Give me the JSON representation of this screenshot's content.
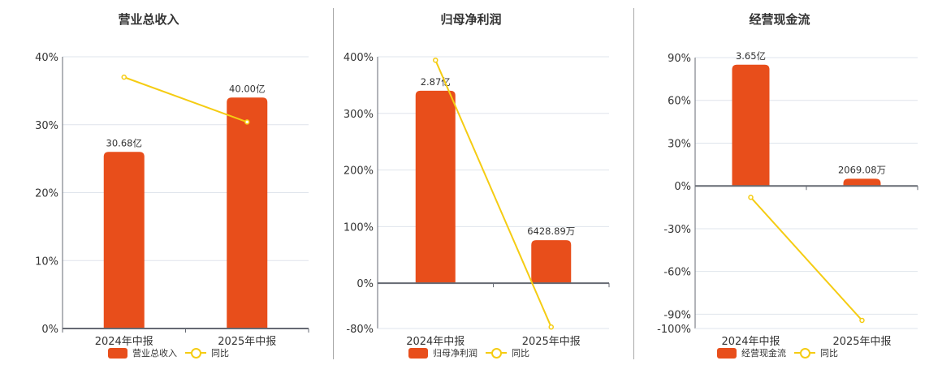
{
  "colors": {
    "bar": "#e84e1b",
    "line": "#f5cc13",
    "grid": "#dfe4ec",
    "axis": "#666a73",
    "divider": "#a8a8a8"
  },
  "legend": {
    "line_label": "同比"
  },
  "categories": [
    "2024年中报",
    "2025年中报"
  ],
  "chart_data": [
    {
      "type": "bar+line",
      "title": "营业总收入",
      "categories": [
        "2024年中报",
        "2025年中报"
      ],
      "series": [
        {
          "name": "营业总收入",
          "type": "bar",
          "values": [
            30.68,
            40.0
          ],
          "unit": "亿",
          "labels": [
            "30.68亿",
            "40.00亿"
          ],
          "rel_heights_pct": [
            26.0,
            34.0
          ]
        },
        {
          "name": "同比",
          "type": "line",
          "values": [
            37.0,
            30.4
          ],
          "unit": "%"
        }
      ],
      "yaxis": {
        "ticks": [
          "0%",
          "10%",
          "20%",
          "30%",
          "40%"
        ],
        "tick_values": [
          0,
          10,
          20,
          30,
          40
        ],
        "ylim": [
          0,
          40
        ]
      },
      "legend": {
        "bar_label": "营业总收入",
        "line_label": "同比"
      }
    },
    {
      "type": "bar+line",
      "title": "归母净利润",
      "categories": [
        "2024年中报",
        "2025年中报"
      ],
      "series": [
        {
          "name": "归母净利润",
          "type": "bar",
          "values": [
            28700,
            6428.89
          ],
          "unit": "万",
          "labels": [
            "2.87亿",
            "6428.89万"
          ],
          "rel_heights_pct": [
            340,
            76
          ]
        },
        {
          "name": "同比",
          "type": "line",
          "values": [
            394,
            -77.4
          ],
          "unit": "%"
        }
      ],
      "yaxis": {
        "ticks": [
          "-80%",
          "0%",
          "100%",
          "200%",
          "300%",
          "400%"
        ],
        "tick_values": [
          -80,
          0,
          100,
          200,
          300,
          400
        ],
        "ylim": [
          -80,
          400
        ]
      },
      "legend": {
        "bar_label": "归母净利润",
        "line_label": "同比"
      }
    },
    {
      "type": "bar+line",
      "title": "经营现金流",
      "categories": [
        "2024年中报",
        "2025年中报"
      ],
      "series": [
        {
          "name": "经营现金流",
          "type": "bar",
          "values": [
            36500,
            2069.08
          ],
          "unit": "万",
          "labels": [
            "3.65亿",
            "2069.08万"
          ],
          "rel_heights_pct": [
            85,
            5
          ]
        },
        {
          "name": "同比",
          "type": "line",
          "values": [
            -8.0,
            -94.3
          ],
          "unit": "%"
        }
      ],
      "yaxis": {
        "ticks": [
          "-100%",
          "-90%",
          "-60%",
          "-30%",
          "0%",
          "30%",
          "60%",
          "90%"
        ],
        "tick_values": [
          -100,
          -90,
          -60,
          -30,
          0,
          30,
          60,
          90
        ],
        "ylim": [
          -100,
          90
        ]
      },
      "legend": {
        "bar_label": "经营现金流",
        "line_label": "同比"
      }
    }
  ]
}
